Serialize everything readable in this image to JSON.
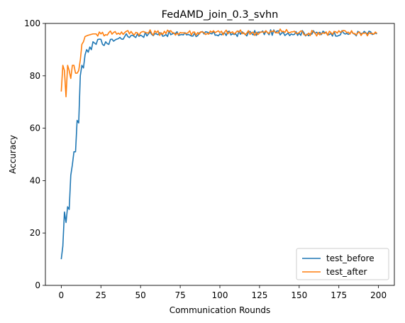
{
  "chart_data": {
    "type": "line",
    "title": "FedAMD_join_0.3_svhn",
    "xlabel": "Communication Rounds",
    "ylabel": "Accuracy",
    "xlim": [
      -10,
      210
    ],
    "ylim": [
      0,
      100
    ],
    "x_ticks": [
      0,
      25,
      50,
      75,
      100,
      125,
      150,
      175,
      200
    ],
    "y_ticks": [
      0,
      20,
      40,
      60,
      80,
      100
    ],
    "grid": false,
    "legend_position": "lower-right",
    "series": [
      {
        "name": "test_before",
        "color": "#1f77b4",
        "anchors": [
          [
            0,
            10
          ],
          [
            1,
            15
          ],
          [
            2,
            28
          ],
          [
            3,
            24
          ],
          [
            4,
            30
          ],
          [
            5,
            29
          ],
          [
            6,
            42
          ],
          [
            7,
            46
          ],
          [
            8,
            51
          ],
          [
            9,
            51
          ],
          [
            10,
            63
          ],
          [
            11,
            62
          ],
          [
            12,
            80
          ],
          [
            13,
            84
          ],
          [
            14,
            83
          ],
          [
            15,
            88
          ],
          [
            16,
            90
          ],
          [
            17,
            89
          ],
          [
            18,
            91
          ],
          [
            19,
            90
          ],
          [
            20,
            93
          ],
          [
            22,
            92
          ],
          [
            24,
            94
          ],
          [
            26,
            92
          ],
          [
            28,
            93
          ],
          [
            30,
            92
          ],
          [
            32,
            94
          ],
          [
            35,
            94
          ],
          [
            40,
            95
          ],
          [
            45,
            95.5
          ],
          [
            50,
            95.5
          ],
          [
            55,
            96
          ],
          [
            60,
            96
          ],
          [
            70,
            96
          ],
          [
            80,
            95.8
          ],
          [
            90,
            96
          ],
          [
            100,
            96
          ],
          [
            110,
            96
          ],
          [
            120,
            96.2
          ],
          [
            130,
            96.5
          ],
          [
            140,
            96.5
          ],
          [
            150,
            96.3
          ],
          [
            160,
            96.2
          ],
          [
            170,
            96.2
          ],
          [
            180,
            96.2
          ],
          [
            190,
            96.2
          ],
          [
            199,
            96
          ]
        ]
      },
      {
        "name": "test_after",
        "color": "#ff7f0e",
        "anchors": [
          [
            0,
            74
          ],
          [
            1,
            84
          ],
          [
            2,
            82
          ],
          [
            3,
            72
          ],
          [
            4,
            84
          ],
          [
            5,
            82
          ],
          [
            6,
            79
          ],
          [
            7,
            84
          ],
          [
            8,
            84
          ],
          [
            9,
            81
          ],
          [
            10,
            81
          ],
          [
            11,
            82
          ],
          [
            12,
            86
          ],
          [
            13,
            92
          ],
          [
            14,
            93
          ],
          [
            15,
            95
          ],
          [
            17,
            95.5
          ],
          [
            20,
            96
          ],
          [
            25,
            96
          ],
          [
            30,
            96.5
          ],
          [
            40,
            96.5
          ],
          [
            50,
            96.5
          ],
          [
            60,
            96.5
          ],
          [
            70,
            96.5
          ],
          [
            80,
            96.5
          ],
          [
            90,
            96.5
          ],
          [
            100,
            96.5
          ],
          [
            110,
            96.5
          ],
          [
            120,
            96.5
          ],
          [
            130,
            96.5
          ],
          [
            140,
            97
          ],
          [
            150,
            96.5
          ],
          [
            160,
            96.3
          ],
          [
            170,
            96.5
          ],
          [
            180,
            96.5
          ],
          [
            190,
            96.3
          ],
          [
            199,
            96.2
          ]
        ]
      }
    ]
  }
}
